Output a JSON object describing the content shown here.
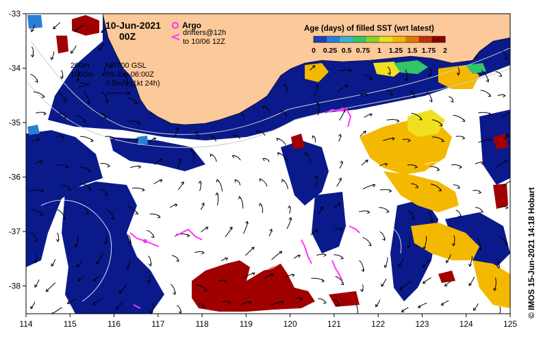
{
  "header": {
    "date": "10-Jun-2021",
    "time": "00Z"
  },
  "legend_argo": {
    "title": "Argo",
    "drifters_line1": "drifters@12h",
    "drifters_line2": "to 10/06 12Z",
    "argo_color": "#ff33ff",
    "drifter_color": "#ff33ff"
  },
  "info": {
    "contour_200": "200m",
    "contour_1000": "1000m",
    "model": "NRT00 GSL",
    "model_time": "08-Jun 06:00Z",
    "vector_scale": "0.5m/s (1kt 24h)"
  },
  "colorbar": {
    "title": "Age (days) of filled SST (wrt latest)",
    "tick_labels": [
      "0",
      "0.25",
      "0.5",
      "0.75",
      "1",
      "1.25",
      "1.5",
      "1.75",
      "2"
    ],
    "colors": [
      "#1f3fb8",
      "#2a7fd6",
      "#3ab5c8",
      "#33c46a",
      "#8ed02a",
      "#e8e020",
      "#f4b800",
      "#e07a00",
      "#c03010",
      "#8a0000"
    ]
  },
  "axes": {
    "x_ticks": [
      "114",
      "115",
      "116",
      "117",
      "118",
      "119",
      "120",
      "121",
      "122",
      "123",
      "124",
      "125"
    ],
    "y_ticks": [
      "-33",
      "-34",
      "-35",
      "-36",
      "-37",
      "-38"
    ]
  },
  "credit": "© IMOS 15-Jun-2021 14:18 Hobart",
  "colors": {
    "land": "#fcc99a",
    "ocean_old": "#0a1a8a",
    "ocean_fill_gold": "#f4b800",
    "ocean_fill_red": "#a00000",
    "ocean_fill_yellow": "#f0e020",
    "no_data": "#ffffff"
  }
}
